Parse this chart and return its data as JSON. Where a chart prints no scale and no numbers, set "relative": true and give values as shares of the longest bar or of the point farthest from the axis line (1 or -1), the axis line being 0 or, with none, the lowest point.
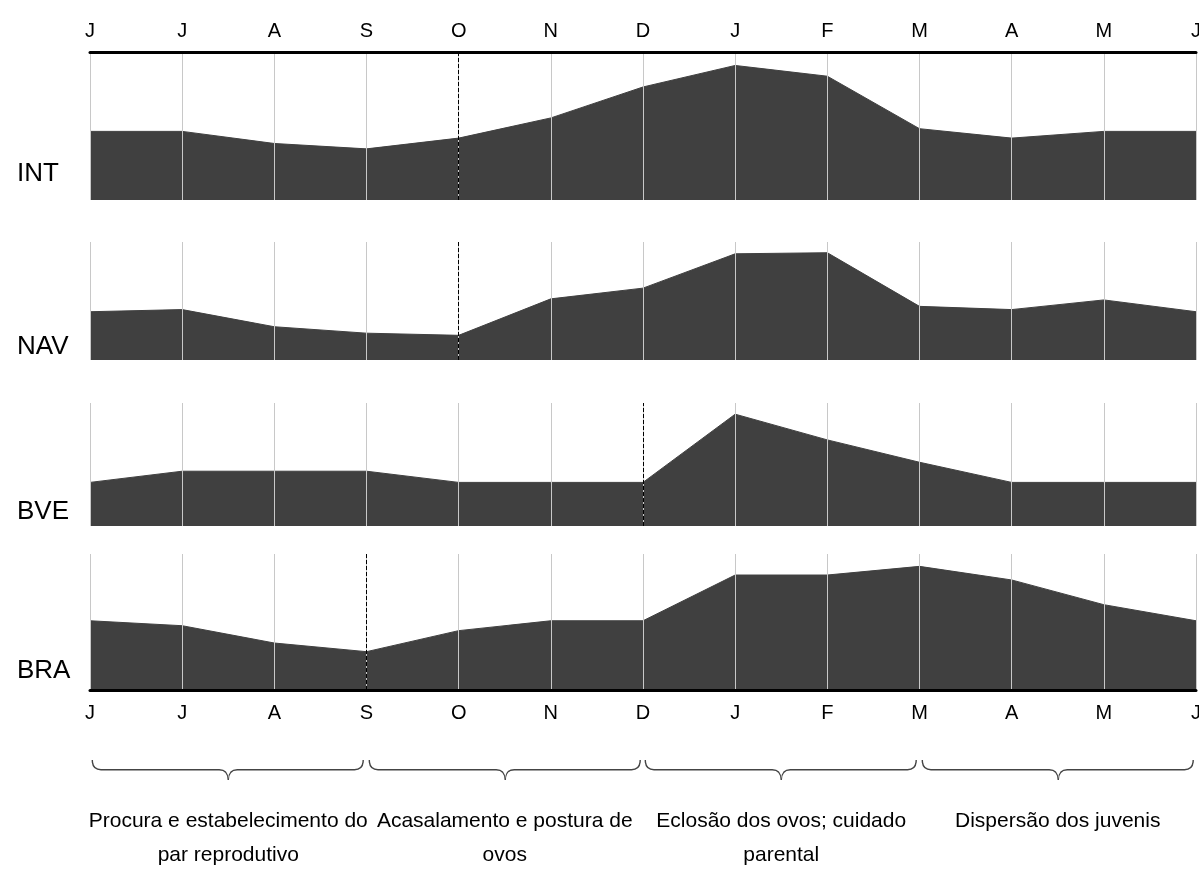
{
  "chart_data": [
    {
      "type": "area",
      "title": "INT",
      "categories": [
        "J",
        "J",
        "A",
        "S",
        "O",
        "N",
        "D",
        "J",
        "F",
        "M",
        "A",
        "M",
        "J"
      ],
      "relative": true,
      "color": "#404040",
      "values": [
        0.51,
        0.51,
        0.42,
        0.38,
        0.46,
        0.61,
        0.84,
        1,
        0.92,
        0.53,
        0.46,
        0.51,
        0.51
      ],
      "grid": "x",
      "tick_labels": "x",
      "ref_lines": [
        {
          "axis": "x",
          "value": "O",
          "line_style": "dashed",
          "color": "#000000"
        }
      ]
    },
    {
      "type": "area",
      "title": "NAV",
      "categories": [
        "J",
        "J",
        "A",
        "S",
        "O",
        "N",
        "D",
        "J",
        "F",
        "M",
        "A",
        "M",
        "J"
      ],
      "relative": true,
      "color": "#404040",
      "values": [
        0.45,
        0.47,
        0.31,
        0.25,
        0.23,
        0.57,
        0.67,
        0.99,
        1,
        0.5,
        0.47,
        0.56,
        0.45
      ],
      "grid": "x",
      "tick_labels": false,
      "ref_lines": [
        {
          "axis": "x",
          "value": "O",
          "line_style": "dashed",
          "color": "#000000"
        }
      ]
    },
    {
      "type": "area",
      "title": "BVE",
      "categories": [
        "J",
        "J",
        "A",
        "S",
        "O",
        "N",
        "D",
        "J",
        "F",
        "M",
        "A",
        "M",
        "J"
      ],
      "relative": true,
      "color": "#404040",
      "values": [
        0.39,
        0.49,
        0.49,
        0.49,
        0.39,
        0.39,
        0.39,
        1,
        0.77,
        0.57,
        0.39,
        0.39,
        0.39
      ],
      "grid": "x",
      "tick_labels": false,
      "ref_lines": [
        {
          "axis": "x",
          "value": "D",
          "line_style": "dashed",
          "color": "#000000"
        }
      ]
    },
    {
      "type": "area",
      "title": "BRA",
      "categories": [
        "J",
        "J",
        "A",
        "S",
        "O",
        "N",
        "D",
        "J",
        "F",
        "M",
        "A",
        "M",
        "J"
      ],
      "relative": true,
      "color": "#404040",
      "values": [
        0.56,
        0.52,
        0.38,
        0.31,
        0.48,
        0.56,
        0.56,
        0.93,
        0.93,
        1,
        0.89,
        0.69,
        0.56
      ],
      "grid": "x",
      "tick_labels": "x",
      "ref_lines": [
        {
          "axis": "x",
          "value": "S",
          "line_style": "dashed",
          "color": "#000000"
        }
      ],
      "annotations": [
        "Procura e estabelecimento do par reprodutivo",
        "Acasalamento e postura de ovos",
        "Eclosão dos ovos; cuidado parental",
        "Dispersão dos juvenis"
      ]
    }
  ]
}
